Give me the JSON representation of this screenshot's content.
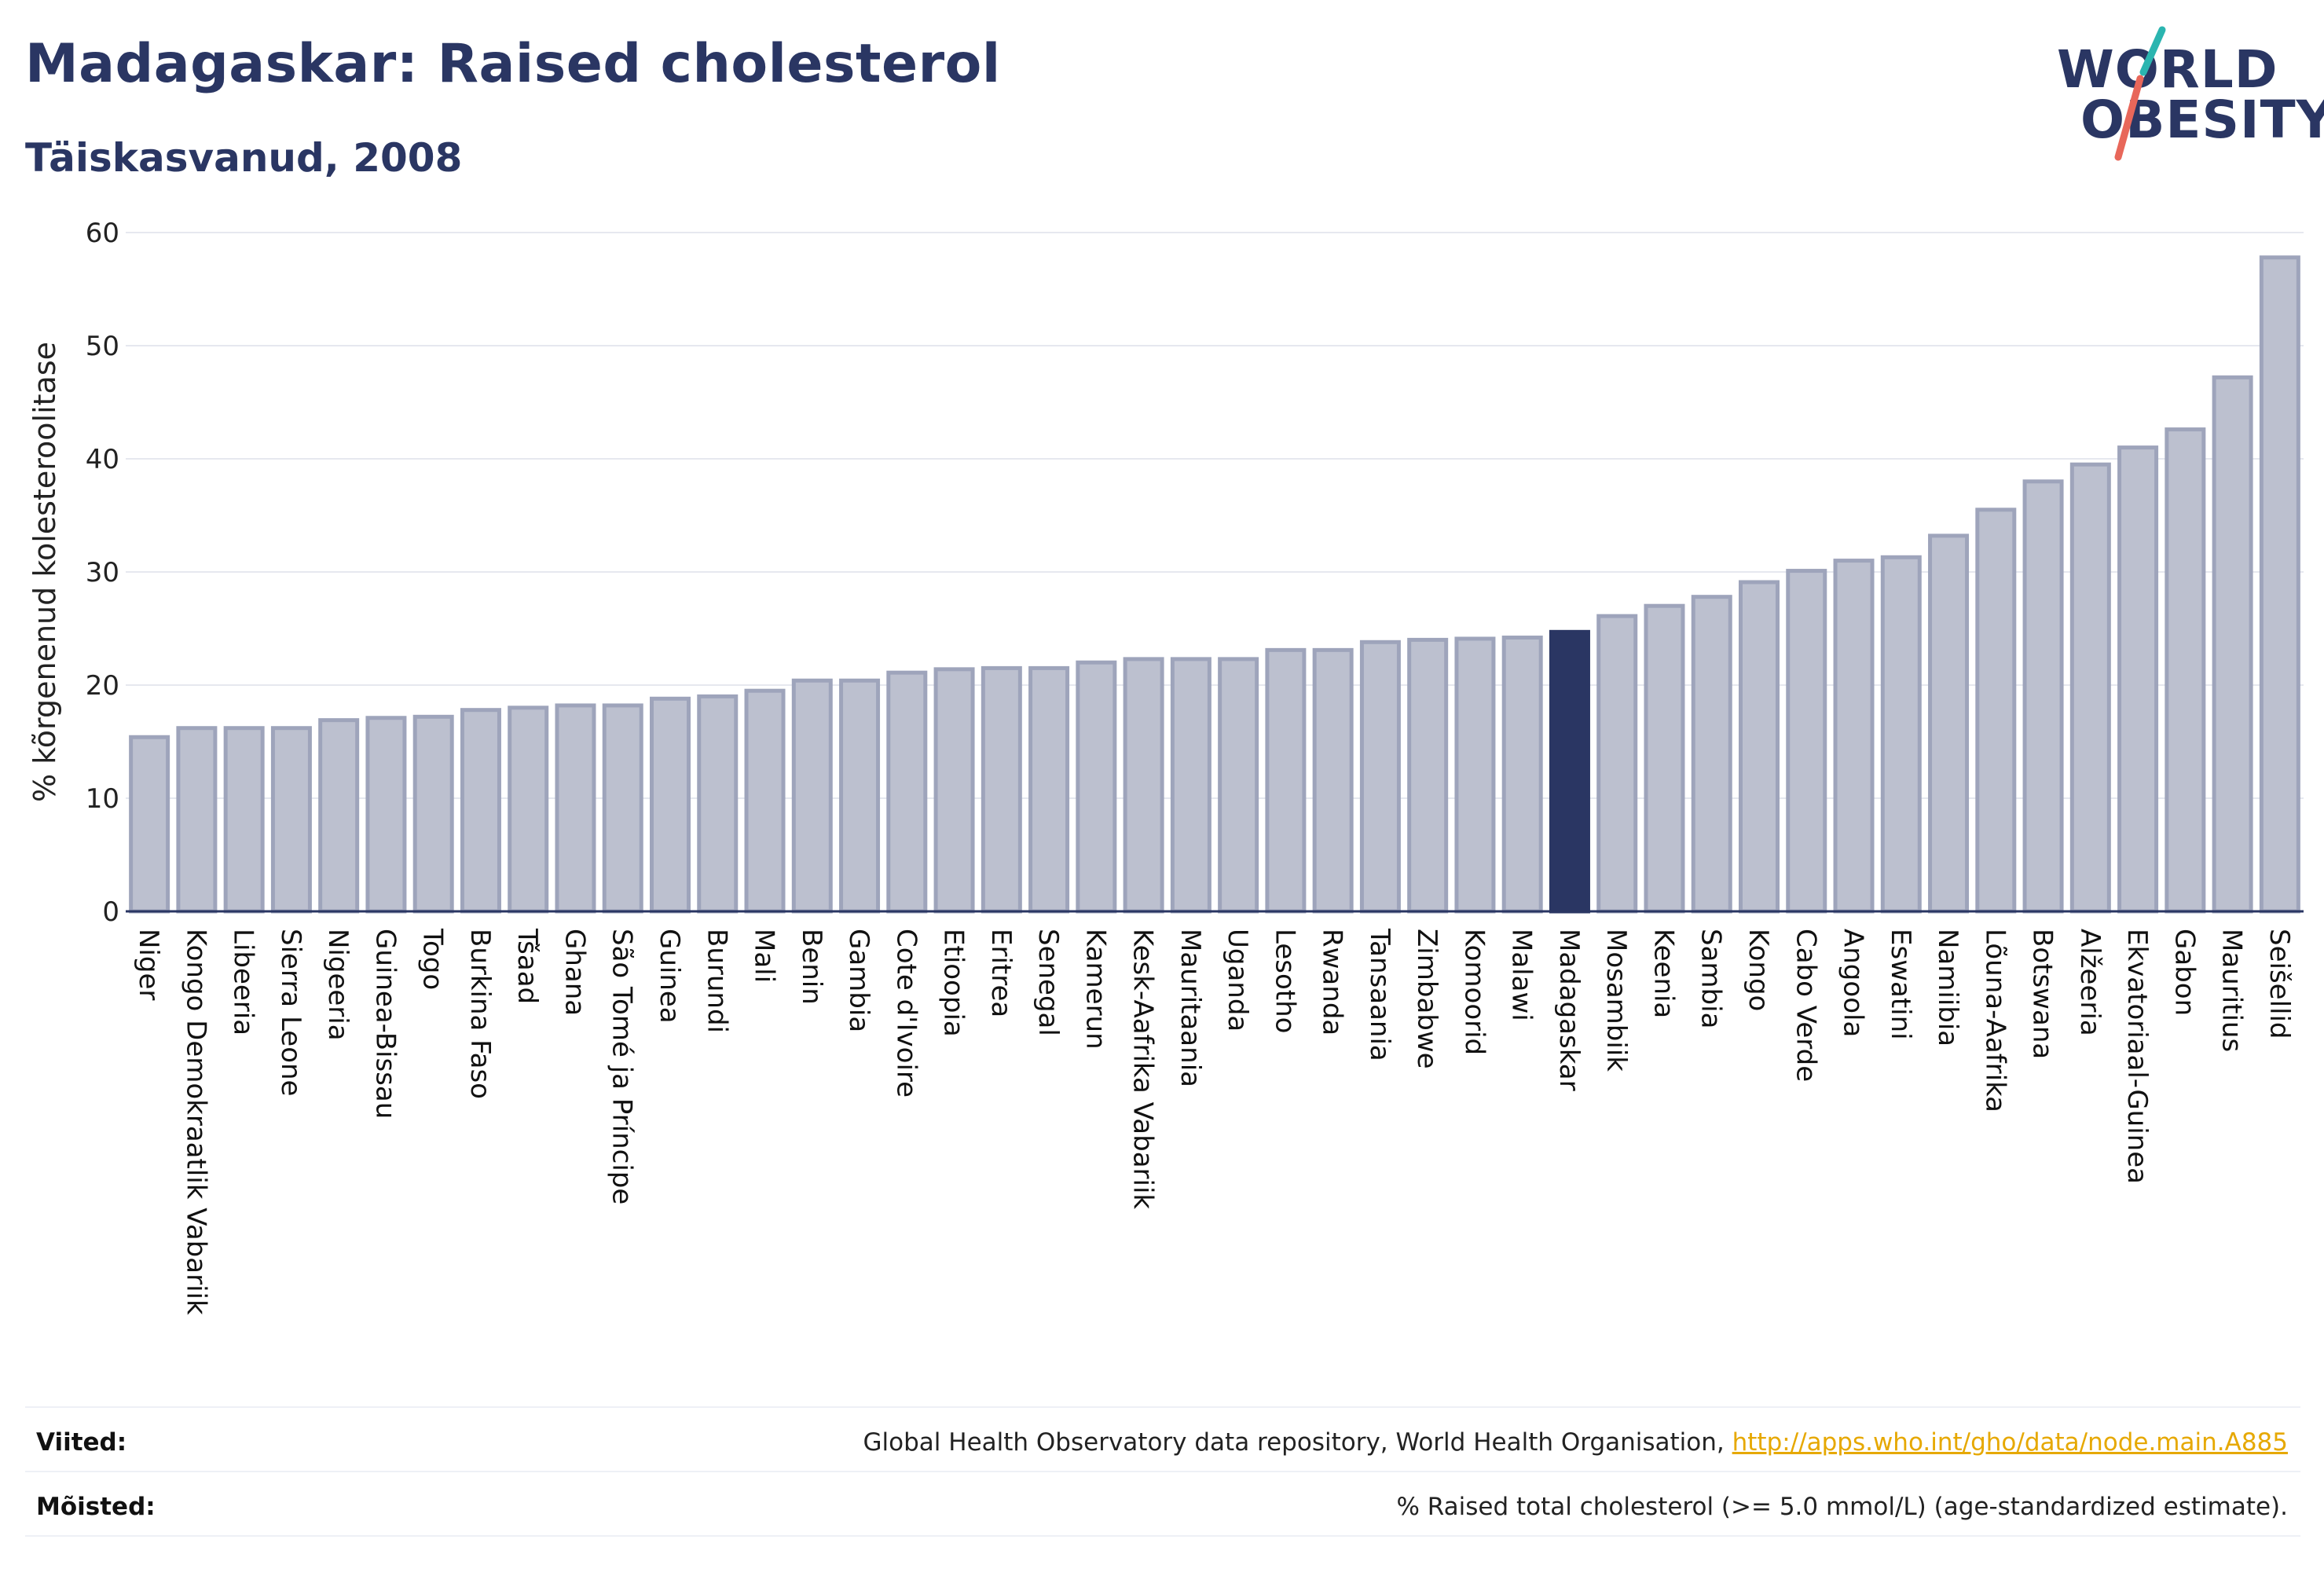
{
  "header": {
    "title": "Madagaskar: Raised cholesterol",
    "subtitle": "Täiskasvanud, 2008"
  },
  "logo": {
    "line1": "WORLD",
    "line2": "OBESITY"
  },
  "colors": {
    "bar_fill": "#bcc0cf",
    "bar_stroke": "#9ea4bb",
    "highlight": "#2a3663",
    "accent_teal": "#2bb5b0",
    "accent_red": "#e8675a",
    "grid": "#e6e8ef"
  },
  "chart_data": {
    "type": "bar",
    "ylabel": "% kõrgenenud kolesteroolitase",
    "ylim": [
      0,
      60
    ],
    "yticks": [
      0,
      10,
      20,
      30,
      40,
      50,
      60
    ],
    "highlight": "Madagaskar",
    "categories": [
      "Niger",
      "Kongo Demokraatlik Vabariik",
      "Libeeria",
      "Sierra Leone",
      "Nigeeria",
      "Guinea-Bissau",
      "Togo",
      "Burkina Faso",
      "Tšaad",
      "Ghana",
      "São Tomé ja Príncipe",
      "Guinea",
      "Burundi",
      "Mali",
      "Benin",
      "Gambia",
      "Cote d'Ivoire",
      "Etioopia",
      "Eritrea",
      "Senegal",
      "Kamerun",
      "Kesk-Aafrika Vabariik",
      "Mauritaania",
      "Uganda",
      "Lesotho",
      "Rwanda",
      "Tansaania",
      "Zimbabwe",
      "Komoorid",
      "Malawi",
      "Madagaskar",
      "Mosambiik",
      "Keenia",
      "Sambia",
      "Kongo",
      "Cabo Verde",
      "Angoola",
      "Eswatini",
      "Namiibia",
      "Lõuna-Aafrika",
      "Botswana",
      "Alžeeria",
      "Ekvatoriaal-Guinea",
      "Gabon",
      "Mauritius",
      "Seišellid"
    ],
    "values": [
      15.4,
      16.2,
      16.2,
      16.2,
      16.9,
      17.1,
      17.2,
      17.8,
      18.0,
      18.2,
      18.2,
      18.8,
      19.0,
      19.5,
      20.4,
      20.4,
      21.1,
      21.4,
      21.5,
      21.5,
      22.0,
      22.3,
      22.3,
      22.3,
      23.1,
      23.1,
      23.8,
      24.0,
      24.1,
      24.2,
      24.7,
      26.1,
      27.0,
      27.8,
      29.1,
      30.1,
      31.0,
      31.3,
      33.2,
      35.5,
      38.0,
      39.5,
      41.0,
      42.6,
      47.2,
      57.8
    ]
  },
  "footer": {
    "sources_label": "Viited:",
    "sources_text": "Global Health Observatory data repository, World Health Organisation, ",
    "sources_link": "http://apps.who.int/gho/data/node.main.A885",
    "definitions_label": "Mõisted:",
    "definitions_text": "% Raised total cholesterol (>= 5.0 mmol/L) (age-standardized estimate)."
  }
}
